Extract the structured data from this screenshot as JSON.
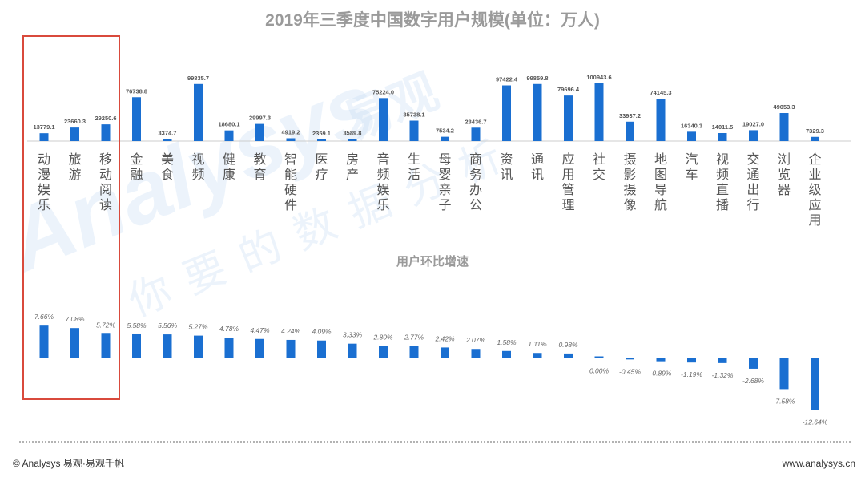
{
  "title": "2019年三季度中国数字用户规模(单位：万人)",
  "subtitle": "用户环比增速",
  "footer": {
    "left": "© Analysys 易观·易观千帆",
    "right": "www.analysys.cn"
  },
  "watermark": {
    "brand_latin": "Analysys",
    "brand_cn": "易观",
    "slogan": "你要的数据分析"
  },
  "colors": {
    "bar": "#1a6fd1",
    "highlight_box": "#d94a3c",
    "axis": "#cccccc",
    "divider": "#9a9a9a"
  },
  "chart_data": [
    {
      "type": "bar",
      "title": "2019年三季度中国数字用户规模(单位：万人)",
      "categories": [
        "动漫娱乐",
        "旅游",
        "移动阅读",
        "金融",
        "美食",
        "视频",
        "健康",
        "教育",
        "智能硬件",
        "医疗",
        "房产",
        "音频娱乐",
        "生活",
        "母婴亲子",
        "商务办公",
        "资讯",
        "通讯",
        "应用管理",
        "社交",
        "摄影摄像",
        "地图导航",
        "汽车",
        "视频直播",
        "交通出行",
        "浏览器",
        "企业级应用"
      ],
      "values": [
        13779.1,
        23660.3,
        29250.6,
        76738.8,
        3374.7,
        99835.7,
        18680.1,
        29997.3,
        4919.2,
        2359.1,
        3589.8,
        75224.0,
        35738.1,
        7534.2,
        23436.7,
        97422.4,
        99859.8,
        79696.4,
        100943.6,
        33937.2,
        74145.3,
        16340.3,
        14011.5,
        19027.0,
        49053.3,
        7329.3
      ],
      "value_labels": [
        "13779.1",
        "23660.3",
        "29250.6",
        "76738.8",
        "3374.7",
        "99835.7",
        "18680.1",
        "29997.3",
        "4919.2",
        "2359.1",
        "3589.8",
        "75224.0",
        "35738.1",
        "7534.2",
        "23436.7",
        "97422.4",
        "99859.8",
        "79696.4",
        "100943.6",
        "33937.2",
        "74145.3",
        "16340.3",
        "14011.5",
        "19027.0",
        "49053.3",
        "7329.3"
      ],
      "highlighted_categories": [
        "动漫娱乐",
        "旅游",
        "移动阅读"
      ]
    },
    {
      "type": "bar",
      "title": "用户环比增速",
      "values": [
        7.66,
        7.08,
        5.72,
        5.58,
        5.56,
        5.27,
        4.78,
        4.47,
        4.24,
        4.09,
        3.33,
        2.8,
        2.77,
        2.42,
        2.07,
        1.58,
        1.11,
        0.98,
        0.0,
        -0.45,
        -0.89,
        -1.19,
        -1.32,
        -2.68,
        -7.58,
        -12.64
      ],
      "value_labels": [
        "7.66%",
        "7.08%",
        "5.72%",
        "5.58%",
        "5.56%",
        "5.27%",
        "4.78%",
        "4.47%",
        "4.24%",
        "4.09%",
        "3.33%",
        "2.80%",
        "2.77%",
        "2.42%",
        "2.07%",
        "1.58%",
        "1.11%",
        "0.98%",
        "0.00%",
        "-0.45%",
        "-0.89%",
        "-1.19%",
        "-1.32%",
        "-2.68%",
        "-7.58%",
        "-12.64%"
      ]
    }
  ]
}
